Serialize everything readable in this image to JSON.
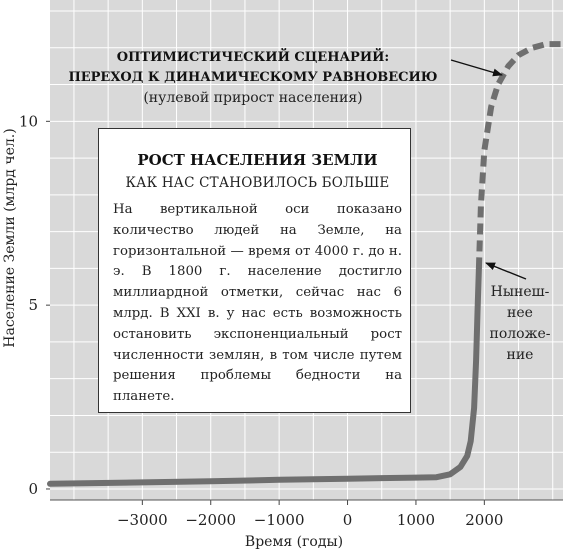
{
  "chart_data": {
    "type": "line",
    "xlabel": "Время (годы)",
    "ylabel": "Население Земли (млрд чел.)",
    "xlim": [
      -4350,
      3150
    ],
    "ylim": [
      -0.3,
      13.3
    ],
    "x_ticks": [
      -3000,
      -2000,
      -1000,
      0,
      1000,
      2000
    ],
    "x_tick_labels": [
      "−3000",
      "−2000",
      "−1000",
      "0",
      "1000",
      "2000"
    ],
    "y_ticks": [
      0,
      5,
      10
    ],
    "y_tick_labels": [
      "0",
      "5",
      "10"
    ],
    "x_grid_step": 500,
    "y_grid_step": 1,
    "grid": true,
    "background": "#d9d9d9",
    "line_color": "#6f6f6f",
    "series": [
      {
        "style": "solid",
        "x": [
          -4350,
          -3000,
          -2000,
          -1000,
          0,
          1000,
          1300,
          1500,
          1650,
          1750,
          1800,
          1850,
          1880,
          1900,
          1920
        ],
        "y": [
          0.14,
          0.18,
          0.21,
          0.25,
          0.28,
          0.31,
          0.32,
          0.4,
          0.6,
          0.9,
          1.3,
          2.2,
          3.5,
          4.8,
          6.0
        ]
      },
      {
        "style": "dashed",
        "x": [
          1920,
          1950,
          2000,
          2100,
          2200,
          2350,
          2500,
          2700,
          2900,
          3150
        ],
        "y": [
          6.0,
          7.7,
          9.2,
          10.4,
          11.0,
          11.5,
          11.8,
          12.0,
          12.1,
          12.1
        ]
      }
    ],
    "annotations": [
      {
        "lines": [
          "ОПТИМИСТИЧЕСКИЙ СЦЕНАРИЙ:",
          "ПЕРЕХОД К ДИНАМИЧЕСКОМУ РАВНОВЕСИЮ"
        ],
        "bold": true
      },
      {
        "lines": [
          "(нулевой прирост населения)"
        ]
      },
      {
        "lines": [
          "Нынеш-",
          "нее",
          "положе-",
          "ние"
        ]
      }
    ]
  },
  "infobox": {
    "title": "РОСТ НАСЕЛЕНИЯ ЗЕМЛИ",
    "subtitle": "КАК НАС СТАНОВИЛОСЬ БОЛЬШЕ",
    "body": "На вертикальной оси показано количество людей на Земле, на горизонтальной — время от 4000 г. до н. э. В 1800 г. население достигло миллиардной отметки, сейчас нас 6 млрд. В XXI в. у нас есть возможность остановить экспоненциальный рост численности землян, в том числе путем решения проблемы бедности на планете."
  }
}
